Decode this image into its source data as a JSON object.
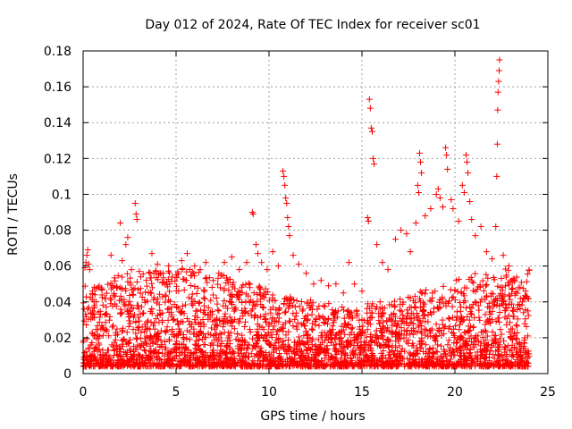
{
  "chart_data": {
    "type": "scatter",
    "title": "Day 012 of 2024, Rate Of TEC Index for receiver sc01",
    "xlabel": "GPS time / hours",
    "ylabel": "ROTI / TECUs",
    "xlim": [
      0,
      25
    ],
    "ylim": [
      0,
      0.18
    ],
    "xticks": [
      "0",
      "5",
      "10",
      "15",
      "20",
      "25"
    ],
    "yticks": [
      "0",
      "0.02",
      "0.04",
      "0.06",
      "0.08",
      "0.1",
      "0.12",
      "0.14",
      "0.16",
      "0.18"
    ],
    "grid": true,
    "marker": "+",
    "color": "#ff0000",
    "series": [
      {
        "points": [
          [
            0.05,
            0.036
          ],
          [
            0.1,
            0.059
          ],
          [
            0.15,
            0.062
          ],
          [
            0.2,
            0.066
          ],
          [
            0.25,
            0.069
          ],
          [
            0.3,
            0.061
          ],
          [
            0.35,
            0.058
          ],
          [
            0.5,
            0.046
          ],
          [
            0.8,
            0.048
          ],
          [
            1.2,
            0.042
          ],
          [
            1.5,
            0.066
          ],
          [
            1.8,
            0.048
          ],
          [
            2.0,
            0.084
          ],
          [
            2.1,
            0.063
          ],
          [
            2.3,
            0.072
          ],
          [
            2.4,
            0.076
          ],
          [
            2.6,
            0.058
          ],
          [
            2.8,
            0.095
          ],
          [
            2.85,
            0.089
          ],
          [
            2.9,
            0.086
          ],
          [
            3.1,
            0.054
          ],
          [
            3.4,
            0.052
          ],
          [
            3.7,
            0.067
          ],
          [
            4.0,
            0.061
          ],
          [
            4.3,
            0.056
          ],
          [
            4.6,
            0.06
          ],
          [
            5.0,
            0.055
          ],
          [
            5.3,
            0.063
          ],
          [
            5.6,
            0.067
          ],
          [
            6.0,
            0.06
          ],
          [
            6.3,
            0.058
          ],
          [
            6.6,
            0.062
          ],
          [
            7.0,
            0.052
          ],
          [
            7.3,
            0.056
          ],
          [
            7.6,
            0.062
          ],
          [
            8.0,
            0.065
          ],
          [
            8.4,
            0.058
          ],
          [
            8.8,
            0.062
          ],
          [
            9.1,
            0.09
          ],
          [
            9.15,
            0.089
          ],
          [
            9.3,
            0.072
          ],
          [
            9.4,
            0.067
          ],
          [
            9.6,
            0.062
          ],
          [
            9.9,
            0.058
          ],
          [
            10.2,
            0.068
          ],
          [
            10.5,
            0.06
          ],
          [
            10.75,
            0.113
          ],
          [
            10.8,
            0.11
          ],
          [
            10.85,
            0.105
          ],
          [
            10.9,
            0.098
          ],
          [
            10.95,
            0.095
          ],
          [
            11.0,
            0.087
          ],
          [
            11.05,
            0.082
          ],
          [
            11.1,
            0.077
          ],
          [
            11.3,
            0.066
          ],
          [
            11.6,
            0.061
          ],
          [
            12.0,
            0.056
          ],
          [
            12.4,
            0.05
          ],
          [
            12.8,
            0.052
          ],
          [
            13.2,
            0.049
          ],
          [
            13.6,
            0.05
          ],
          [
            14.0,
            0.045
          ],
          [
            14.3,
            0.062
          ],
          [
            14.6,
            0.05
          ],
          [
            15.0,
            0.046
          ],
          [
            15.3,
            0.087
          ],
          [
            15.35,
            0.085
          ],
          [
            15.4,
            0.153
          ],
          [
            15.45,
            0.148
          ],
          [
            15.5,
            0.137
          ],
          [
            15.55,
            0.135
          ],
          [
            15.6,
            0.12
          ],
          [
            15.65,
            0.117
          ],
          [
            15.8,
            0.072
          ],
          [
            16.1,
            0.062
          ],
          [
            16.4,
            0.058
          ],
          [
            16.8,
            0.075
          ],
          [
            17.1,
            0.08
          ],
          [
            17.4,
            0.078
          ],
          [
            17.6,
            0.068
          ],
          [
            17.9,
            0.084
          ],
          [
            18.0,
            0.105
          ],
          [
            18.05,
            0.101
          ],
          [
            18.1,
            0.123
          ],
          [
            18.15,
            0.118
          ],
          [
            18.2,
            0.112
          ],
          [
            18.4,
            0.088
          ],
          [
            18.7,
            0.092
          ],
          [
            19.0,
            0.1
          ],
          [
            19.1,
            0.103
          ],
          [
            19.2,
            0.098
          ],
          [
            19.35,
            0.093
          ],
          [
            19.5,
            0.126
          ],
          [
            19.55,
            0.122
          ],
          [
            19.6,
            0.114
          ],
          [
            19.8,
            0.097
          ],
          [
            19.9,
            0.092
          ],
          [
            20.2,
            0.085
          ],
          [
            20.4,
            0.105
          ],
          [
            20.5,
            0.101
          ],
          [
            20.6,
            0.122
          ],
          [
            20.65,
            0.118
          ],
          [
            20.7,
            0.112
          ],
          [
            20.8,
            0.096
          ],
          [
            20.9,
            0.086
          ],
          [
            21.1,
            0.077
          ],
          [
            21.4,
            0.082
          ],
          [
            21.7,
            0.068
          ],
          [
            22.0,
            0.064
          ],
          [
            22.2,
            0.082
          ],
          [
            22.25,
            0.11
          ],
          [
            22.28,
            0.128
          ],
          [
            22.3,
            0.147
          ],
          [
            22.32,
            0.157
          ],
          [
            22.35,
            0.163
          ],
          [
            22.38,
            0.169
          ],
          [
            22.4,
            0.175
          ],
          [
            22.6,
            0.066
          ],
          [
            22.9,
            0.06
          ],
          [
            23.2,
            0.052
          ],
          [
            23.5,
            0.048
          ],
          [
            23.8,
            0.046
          ],
          [
            23.9,
            0.042
          ]
        ]
      }
    ]
  }
}
